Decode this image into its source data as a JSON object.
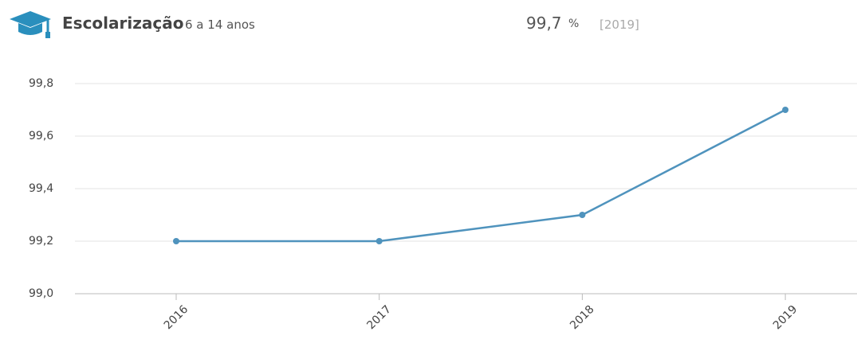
{
  "header": {
    "title": "Escolarização",
    "subtitle": "6 a 14 anos",
    "headline_value": "99,7",
    "headline_unit": "%",
    "headline_period": "[2019]"
  },
  "chart_data": {
    "type": "line",
    "categories": [
      "2016",
      "2017",
      "2018",
      "2019"
    ],
    "series": [
      {
        "name": "Escolarização",
        "color": "#4f93bd",
        "values": [
          99.2,
          99.2,
          99.3,
          99.7
        ]
      }
    ],
    "ylim": [
      99.0,
      99.8
    ],
    "yticks": [
      {
        "value": 99.0,
        "label": "99,0"
      },
      {
        "value": 99.2,
        "label": "99,2"
      },
      {
        "value": 99.4,
        "label": "99,4"
      },
      {
        "value": 99.6,
        "label": "99,6"
      },
      {
        "value": 99.8,
        "label": "99,8"
      }
    ],
    "grid": true
  }
}
